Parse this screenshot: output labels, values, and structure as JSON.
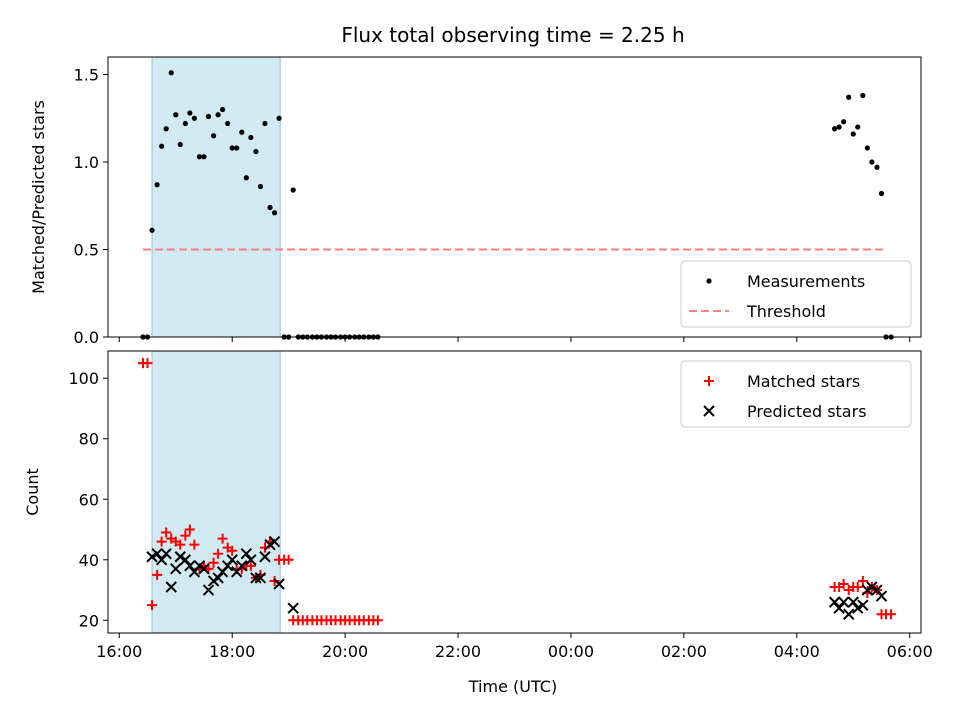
{
  "figure": {
    "title": "Flux total observing time = 2.25 h",
    "xlabel": "Time (UTC)"
  },
  "colors": {
    "shade": "#add8e6",
    "measurements": "#000000",
    "threshold": "#ff7f7f",
    "matched": "#ff0000",
    "predicted": "#000000"
  },
  "x_ticks": [
    {
      "t": 16,
      "label": "16:00"
    },
    {
      "t": 18,
      "label": "18:00"
    },
    {
      "t": 20,
      "label": "20:00"
    },
    {
      "t": 22,
      "label": "22:00"
    },
    {
      "t": 24,
      "label": "00:00"
    },
    {
      "t": 26,
      "label": "02:00"
    },
    {
      "t": 28,
      "label": "04:00"
    },
    {
      "t": 30,
      "label": "06:00"
    }
  ],
  "chart_data": [
    {
      "type": "scatter",
      "ylabel": "Matched/Predicted stars",
      "xlim": [
        15.8,
        30.2
      ],
      "ylim": [
        0,
        1.6
      ],
      "y_ticks": [
        {
          "v": 0,
          "label": "0.0"
        },
        {
          "v": 0.5,
          "label": "0.5"
        },
        {
          "v": 1.0,
          "label": "1.0"
        },
        {
          "v": 1.5,
          "label": "1.5"
        }
      ],
      "shaded_region": [
        16.58,
        18.85
      ],
      "legend_position": "lower-right",
      "legend": [
        {
          "marker": "dot",
          "label": "Measurements"
        },
        {
          "marker": "dash",
          "label": "Threshold"
        }
      ],
      "threshold": {
        "value": 0.5,
        "x_start": 16.42,
        "x_end": 29.58
      },
      "measurements": [
        [
          16.42,
          0.0
        ],
        [
          16.5,
          0.0
        ],
        [
          16.58,
          0.61
        ],
        [
          16.67,
          0.87
        ],
        [
          16.75,
          1.09
        ],
        [
          16.83,
          1.19
        ],
        [
          16.92,
          1.51
        ],
        [
          17.0,
          1.27
        ],
        [
          17.08,
          1.1
        ],
        [
          17.17,
          1.22
        ],
        [
          17.25,
          1.28
        ],
        [
          17.33,
          1.25
        ],
        [
          17.42,
          1.03
        ],
        [
          17.5,
          1.03
        ],
        [
          17.58,
          1.26
        ],
        [
          17.67,
          1.15
        ],
        [
          17.75,
          1.27
        ],
        [
          17.83,
          1.3
        ],
        [
          17.92,
          1.22
        ],
        [
          18.0,
          1.08
        ],
        [
          18.08,
          1.08
        ],
        [
          18.17,
          1.17
        ],
        [
          18.25,
          0.91
        ],
        [
          18.33,
          1.14
        ],
        [
          18.42,
          1.06
        ],
        [
          18.5,
          0.86
        ],
        [
          18.58,
          1.22
        ],
        [
          18.67,
          0.74
        ],
        [
          18.75,
          0.71
        ],
        [
          18.83,
          1.25
        ],
        [
          18.92,
          0.0
        ],
        [
          19.0,
          0.0
        ],
        [
          19.08,
          0.84
        ],
        [
          19.17,
          0.0
        ],
        [
          19.25,
          0.0
        ],
        [
          19.33,
          0.0
        ],
        [
          19.42,
          0.0
        ],
        [
          19.5,
          0.0
        ],
        [
          19.58,
          0.0
        ],
        [
          19.67,
          0.0
        ],
        [
          19.75,
          0.0
        ],
        [
          19.83,
          0.0
        ],
        [
          19.92,
          0.0
        ],
        [
          20.0,
          0.0
        ],
        [
          20.08,
          0.0
        ],
        [
          20.17,
          0.0
        ],
        [
          20.25,
          0.0
        ],
        [
          20.33,
          0.0
        ],
        [
          20.42,
          0.0
        ],
        [
          20.5,
          0.0
        ],
        [
          20.58,
          0.0
        ],
        [
          28.67,
          1.19
        ],
        [
          28.75,
          1.2
        ],
        [
          28.83,
          1.23
        ],
        [
          28.92,
          1.37
        ],
        [
          29.0,
          1.16
        ],
        [
          29.08,
          1.2
        ],
        [
          29.17,
          1.38
        ],
        [
          29.25,
          1.08
        ],
        [
          29.33,
          1.0
        ],
        [
          29.42,
          0.97
        ],
        [
          29.5,
          0.82
        ],
        [
          29.58,
          0.0
        ],
        [
          29.67,
          0.0
        ]
      ]
    },
    {
      "type": "scatter",
      "ylabel": "Count",
      "xlim": [
        15.8,
        30.2
      ],
      "ylim": [
        15.8,
        109
      ],
      "y_ticks": [
        {
          "v": 20,
          "label": "20"
        },
        {
          "v": 40,
          "label": "40"
        },
        {
          "v": 60,
          "label": "60"
        },
        {
          "v": 80,
          "label": "80"
        },
        {
          "v": 100,
          "label": "100"
        }
      ],
      "shaded_region": [
        16.58,
        18.85
      ],
      "legend_position": "upper-right",
      "legend": [
        {
          "marker": "plus",
          "label": "Matched stars"
        },
        {
          "marker": "cross",
          "label": "Predicted stars"
        }
      ],
      "matched": [
        [
          16.42,
          105
        ],
        [
          16.5,
          105
        ],
        [
          16.58,
          25
        ],
        [
          16.67,
          35
        ],
        [
          16.75,
          46
        ],
        [
          16.83,
          49
        ],
        [
          16.92,
          47
        ],
        [
          17.0,
          46
        ],
        [
          17.08,
          45
        ],
        [
          17.17,
          48
        ],
        [
          17.25,
          50
        ],
        [
          17.33,
          45
        ],
        [
          17.42,
          37
        ],
        [
          17.5,
          38
        ],
        [
          17.58,
          37
        ],
        [
          17.67,
          39
        ],
        [
          17.75,
          42
        ],
        [
          17.83,
          47
        ],
        [
          17.92,
          44
        ],
        [
          18.0,
          43
        ],
        [
          18.08,
          37
        ],
        [
          18.17,
          37
        ],
        [
          18.25,
          38
        ],
        [
          18.33,
          38
        ],
        [
          18.42,
          34
        ],
        [
          18.5,
          35
        ],
        [
          18.58,
          44
        ],
        [
          18.67,
          46
        ],
        [
          18.75,
          33
        ],
        [
          18.83,
          40
        ],
        [
          18.92,
          40
        ],
        [
          19.0,
          40
        ],
        [
          19.08,
          20
        ],
        [
          19.17,
          20
        ],
        [
          19.25,
          20
        ],
        [
          19.33,
          20
        ],
        [
          19.42,
          20
        ],
        [
          19.5,
          20
        ],
        [
          19.58,
          20
        ],
        [
          19.67,
          20
        ],
        [
          19.75,
          20
        ],
        [
          19.83,
          20
        ],
        [
          19.92,
          20
        ],
        [
          20.0,
          20
        ],
        [
          20.08,
          20
        ],
        [
          20.17,
          20
        ],
        [
          20.25,
          20
        ],
        [
          20.33,
          20
        ],
        [
          20.42,
          20
        ],
        [
          20.5,
          20
        ],
        [
          20.58,
          20
        ],
        [
          28.67,
          31
        ],
        [
          28.75,
          31
        ],
        [
          28.83,
          32
        ],
        [
          28.92,
          30
        ],
        [
          29.0,
          31
        ],
        [
          29.08,
          31
        ],
        [
          29.17,
          33
        ],
        [
          29.25,
          29
        ],
        [
          29.33,
          31
        ],
        [
          29.42,
          30
        ],
        [
          29.5,
          22
        ],
        [
          29.58,
          22
        ],
        [
          29.67,
          22
        ]
      ],
      "predicted": [
        [
          16.58,
          41
        ],
        [
          16.67,
          42
        ],
        [
          16.75,
          40
        ],
        [
          16.83,
          42
        ],
        [
          16.92,
          31
        ],
        [
          17.0,
          37
        ],
        [
          17.08,
          41
        ],
        [
          17.17,
          40
        ],
        [
          17.25,
          38
        ],
        [
          17.33,
          36
        ],
        [
          17.42,
          38
        ],
        [
          17.5,
          37
        ],
        [
          17.58,
          30
        ],
        [
          17.67,
          33
        ],
        [
          17.75,
          34
        ],
        [
          17.83,
          36
        ],
        [
          17.92,
          38
        ],
        [
          18.0,
          40
        ],
        [
          18.08,
          36
        ],
        [
          18.17,
          38
        ],
        [
          18.25,
          42
        ],
        [
          18.33,
          40
        ],
        [
          18.42,
          34
        ],
        [
          18.5,
          34
        ],
        [
          18.58,
          41
        ],
        [
          18.67,
          45
        ],
        [
          18.75,
          46
        ],
        [
          18.83,
          32
        ],
        [
          19.08,
          24
        ],
        [
          28.67,
          26
        ],
        [
          28.75,
          24
        ],
        [
          28.83,
          26
        ],
        [
          28.92,
          22
        ],
        [
          29.0,
          26
        ],
        [
          29.08,
          24
        ],
        [
          29.17,
          25
        ],
        [
          29.25,
          30
        ],
        [
          29.33,
          31
        ],
        [
          29.42,
          30
        ],
        [
          29.5,
          28
        ]
      ]
    }
  ]
}
